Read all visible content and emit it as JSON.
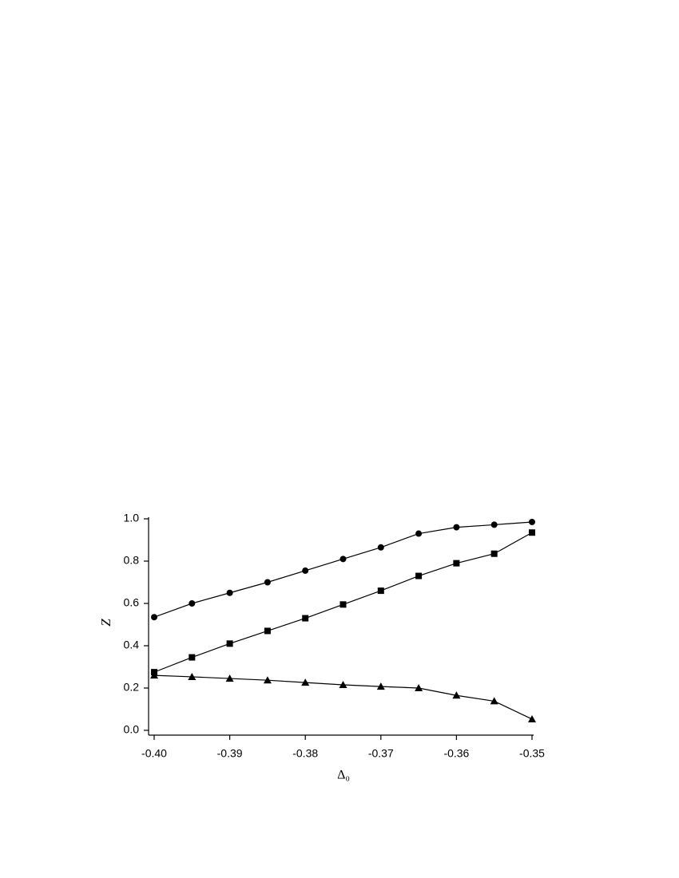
{
  "chart_data": {
    "type": "line",
    "xlabel": "Δ₀",
    "ylabel": "Z",
    "x": [
      -0.4,
      -0.395,
      -0.39,
      -0.385,
      -0.38,
      -0.375,
      -0.37,
      -0.365,
      -0.36,
      -0.355,
      -0.35
    ],
    "series": [
      {
        "color": "#000000",
        "marker": "circle",
        "values": [
          0.535,
          0.6,
          0.65,
          0.7,
          0.755,
          0.81,
          0.865,
          0.93,
          0.96,
          0.972,
          0.985
        ]
      },
      {
        "color": "#000000",
        "marker": "square",
        "values": [
          0.275,
          0.345,
          0.41,
          0.47,
          0.53,
          0.595,
          0.66,
          0.73,
          0.79,
          0.835,
          0.935
        ]
      },
      {
        "color": "#000000",
        "marker": "triangle",
        "values": [
          0.26,
          0.253,
          0.245,
          0.237,
          0.226,
          0.215,
          0.207,
          0.2,
          0.165,
          0.138,
          0.053
        ]
      }
    ],
    "xlim": [
      -0.4,
      -0.35
    ],
    "xticks": [
      {
        "value": -0.4,
        "label": "-0.40"
      },
      -0.39,
      -0.38,
      -0.37,
      -0.36,
      -0.35
    ],
    "ylim": [
      0,
      1
    ],
    "yticks": [
      {
        "value": 0,
        "label": "0.0"
      },
      0.2,
      0.4,
      0.6,
      0.8,
      {
        "value": 1,
        "label": "1.0"
      }
    ],
    "grid": false
  }
}
